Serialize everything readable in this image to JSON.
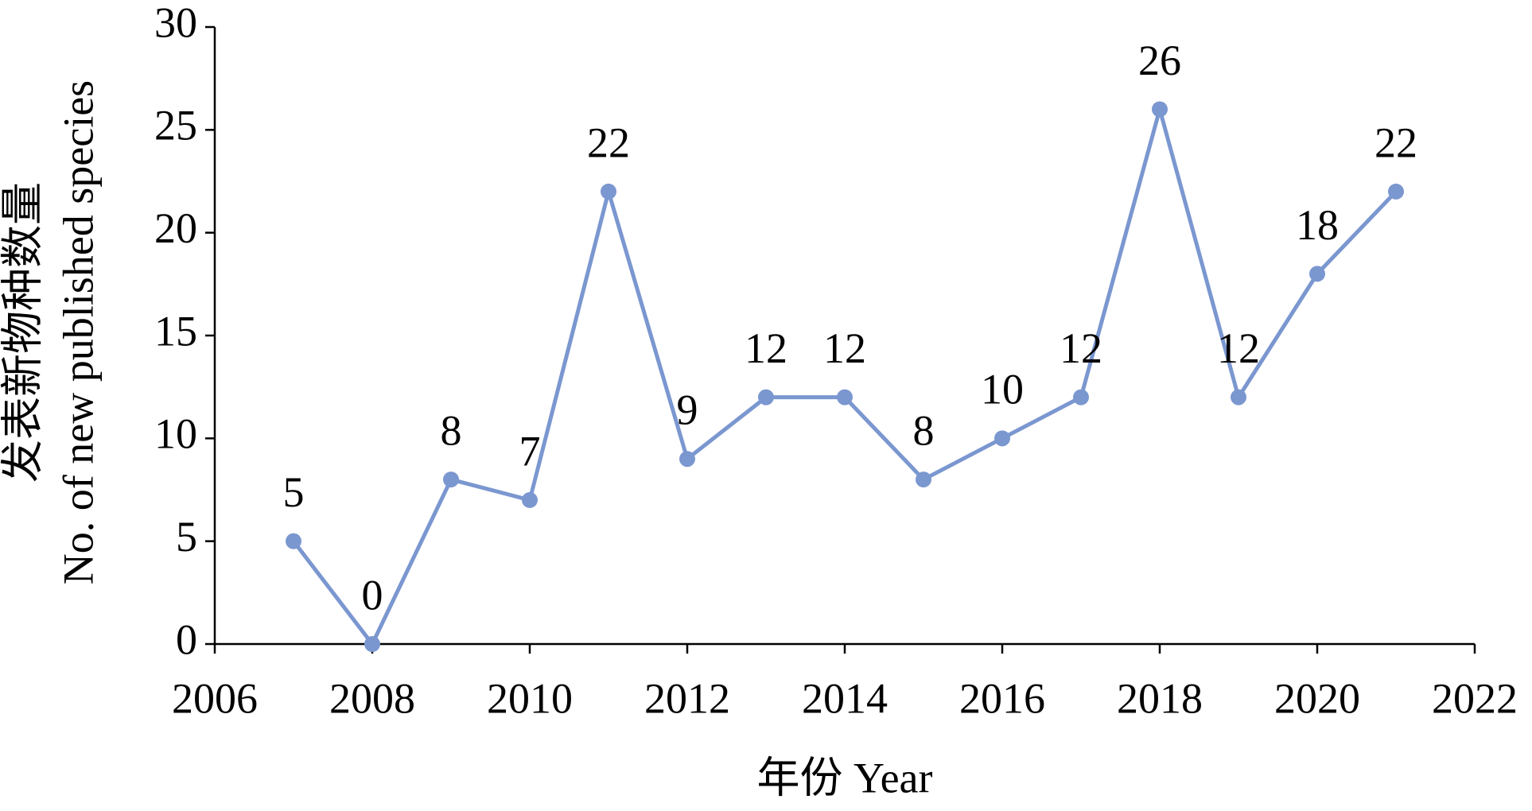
{
  "chart_data": {
    "type": "line",
    "x_label": "年份 Year",
    "y_label": [
      "发表新物种数量",
      "No. of new published species"
    ],
    "x": [
      2007,
      2008,
      2009,
      2010,
      2011,
      2012,
      2013,
      2014,
      2015,
      2016,
      2017,
      2018,
      2019,
      2020,
      2021
    ],
    "series": [
      {
        "color": "#7b97d0",
        "values": [
          5,
          0,
          8,
          7,
          22,
          9,
          12,
          12,
          8,
          10,
          12,
          26,
          12,
          18,
          22
        ]
      }
    ],
    "xlim": [
      2006,
      2022
    ],
    "xticks": [
      2006,
      2008,
      2010,
      2012,
      2014,
      2016,
      2018,
      2020,
      2022
    ],
    "ylim": [
      0,
      30
    ],
    "yticks": [
      0,
      5,
      10,
      15,
      20,
      25,
      30
    ],
    "grid": false
  }
}
